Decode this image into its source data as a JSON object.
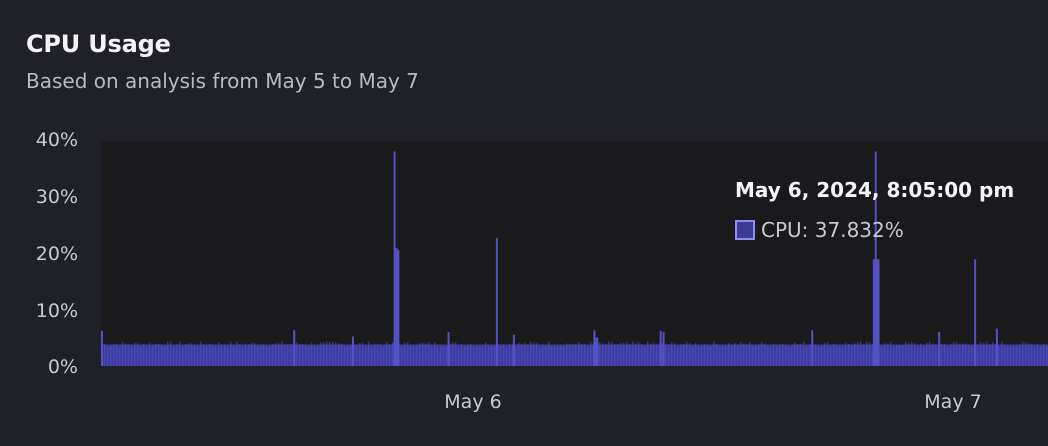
{
  "header": {
    "title": "CPU Usage",
    "subtitle": "Based on analysis from May 5 to May 7"
  },
  "tooltip": {
    "title": "May 6, 2024, 8:05:00 pm",
    "series_label": "CPU: 37.832%"
  },
  "colors": {
    "bar": "#3c3a9a",
    "bar_stroke": "#5552c4",
    "plot_bg": "#1a1a1d",
    "swatch_fill": "#3b3a94",
    "swatch_border": "#8f8df2"
  },
  "chart_data": {
    "type": "bar",
    "title": "CPU Usage",
    "subtitle": "Based on analysis from May 5 to May 7",
    "xlabel": "",
    "ylabel": "",
    "ylim": [
      0,
      40
    ],
    "yticks": [
      "0%",
      "10%",
      "20%",
      "30%",
      "40%"
    ],
    "xticks": [
      "May 6",
      "May 7"
    ],
    "baseline_value": 3.8,
    "series": [
      {
        "values_description_note_free": true,
        "name": "CPU",
        "spikes": [
          {
            "x_fraction": 0.0,
            "value": 6.2
          },
          {
            "x_fraction": 0.203,
            "value": 6.3
          },
          {
            "x_fraction": 0.265,
            "value": 5.2
          },
          {
            "x_fraction": 0.309,
            "value": 37.8
          },
          {
            "x_fraction": 0.311,
            "value": 20.8
          },
          {
            "x_fraction": 0.313,
            "value": 20.5
          },
          {
            "x_fraction": 0.366,
            "value": 6.0
          },
          {
            "x_fraction": 0.417,
            "value": 22.5
          },
          {
            "x_fraction": 0.435,
            "value": 5.5
          },
          {
            "x_fraction": 0.522,
            "value": 5.0
          },
          {
            "x_fraction": 0.523,
            "value": 5.0
          },
          {
            "x_fraction": 0.52,
            "value": 6.3
          },
          {
            "x_fraction": 0.59,
            "value": 6.2
          },
          {
            "x_fraction": 0.593,
            "value": 6.0
          },
          {
            "x_fraction": 0.75,
            "value": 6.3
          },
          {
            "x_fraction": 0.815,
            "value": 18.8
          },
          {
            "x_fraction": 0.818,
            "value": 18.8
          },
          {
            "x_fraction": 0.82,
            "value": 18.8
          },
          {
            "x_fraction": 0.817,
            "value": 37.8
          },
          {
            "x_fraction": 0.884,
            "value": 6.0
          },
          {
            "x_fraction": 0.922,
            "value": 18.8
          },
          {
            "x_fraction": 0.945,
            "value": 6.6
          }
        ]
      }
    ]
  }
}
